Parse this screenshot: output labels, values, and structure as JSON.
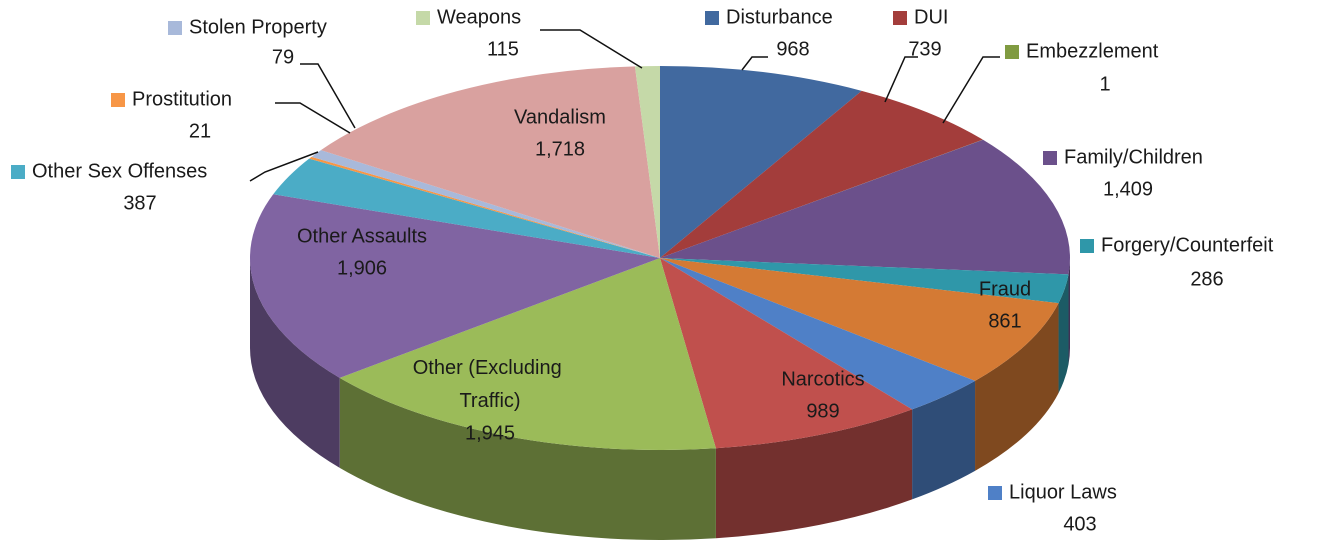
{
  "chart_data": {
    "type": "pie",
    "categories": [
      "Disturbance",
      "DUI",
      "Embezzlement",
      "Family/Children",
      "Forgery/Counterfeit",
      "Fraud",
      "Liquor Laws",
      "Narcotics",
      "Other (Excluding Traffic)",
      "Other Assaults",
      "Other Sex Offenses",
      "Prostitution",
      "Stolen Property",
      "Vandalism",
      "Weapons"
    ],
    "values": [
      968,
      739,
      1,
      1409,
      286,
      861,
      403,
      989,
      1945,
      1906,
      387,
      21,
      79,
      1718,
      115
    ],
    "value_labels": [
      "968",
      "739",
      "1",
      "1,409",
      "286",
      "861",
      "403",
      "989",
      "1,945",
      "1,906",
      "387",
      "21",
      "79",
      "1,718",
      "115"
    ],
    "colors": [
      "#41699f",
      "#a33d3b",
      "#809b41",
      "#6b508b",
      "#2f97a9",
      "#d47a34",
      "#4f80c7",
      "#c0504d",
      "#9bbb59",
      "#8064a2",
      "#4bacc6",
      "#f79646",
      "#a8b9da",
      "#d9a19f",
      "#c5d9a8"
    ]
  }
}
